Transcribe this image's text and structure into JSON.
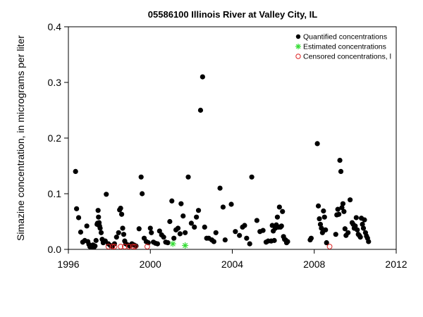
{
  "chart_data": {
    "type": "scatter",
    "title": "05586100 Illinois River at Valley City, IL",
    "xlabel": "",
    "ylabel": "Simazine concentration, in micrograms per liter",
    "xlim": [
      1996,
      2012
    ],
    "ylim": [
      0,
      0.4
    ],
    "x_ticks": [
      "1996",
      "2000",
      "2004",
      "2008",
      "2012"
    ],
    "y_ticks": [
      "0.0",
      "0.1",
      "0.2",
      "0.3",
      "0.4"
    ],
    "grid": false,
    "legend_position": "top-right",
    "colors": {
      "quantified": "#000000",
      "estimated": "#33dd33",
      "censored": "#dd2222"
    },
    "series": [
      {
        "name": "Quantified concentrations",
        "marker": "filled-circle",
        "points": [
          [
            1996.35,
            0.14
          ],
          [
            1996.4,
            0.073
          ],
          [
            1996.5,
            0.057
          ],
          [
            1996.6,
            0.031
          ],
          [
            1996.7,
            0.013
          ],
          [
            1996.8,
            0.016
          ],
          [
            1996.9,
            0.042
          ],
          [
            1996.95,
            0.014
          ],
          [
            1997.0,
            0.009
          ],
          [
            1997.05,
            0.005
          ],
          [
            1997.1,
            0.006
          ],
          [
            1997.15,
            0.005
          ],
          [
            1997.2,
            0.008
          ],
          [
            1997.25,
            0.004
          ],
          [
            1997.3,
            0.006
          ],
          [
            1997.35,
            0.016
          ],
          [
            1997.4,
            0.045
          ],
          [
            1997.42,
            0.047
          ],
          [
            1997.45,
            0.07
          ],
          [
            1997.47,
            0.058
          ],
          [
            1997.5,
            0.048
          ],
          [
            1997.52,
            0.042
          ],
          [
            1997.55,
            0.038
          ],
          [
            1997.6,
            0.03
          ],
          [
            1997.65,
            0.018
          ],
          [
            1997.7,
            0.012
          ],
          [
            1997.8,
            0.015
          ],
          [
            1997.85,
            0.099
          ],
          [
            1997.95,
            0.01
          ],
          [
            1998.05,
            0.007
          ],
          [
            1998.15,
            0.006
          ],
          [
            1998.25,
            0.01
          ],
          [
            1998.35,
            0.022
          ],
          [
            1998.45,
            0.03
          ],
          [
            1998.5,
            0.071
          ],
          [
            1998.55,
            0.074
          ],
          [
            1998.6,
            0.063
          ],
          [
            1998.65,
            0.038
          ],
          [
            1998.7,
            0.027
          ],
          [
            1998.75,
            0.015
          ],
          [
            1998.8,
            0.01
          ],
          [
            1998.9,
            0.008
          ],
          [
            1999.0,
            0.006
          ],
          [
            1999.1,
            0.01
          ],
          [
            1999.2,
            0.008
          ],
          [
            1999.3,
            0.006
          ],
          [
            1999.45,
            0.037
          ],
          [
            1999.55,
            0.13
          ],
          [
            1999.6,
            0.1
          ],
          [
            1999.7,
            0.02
          ],
          [
            1999.8,
            0.014
          ],
          [
            1999.9,
            0.012
          ],
          [
            2000.0,
            0.038
          ],
          [
            2000.05,
            0.03
          ],
          [
            2000.15,
            0.013
          ],
          [
            2000.25,
            0.011
          ],
          [
            2000.35,
            0.01
          ],
          [
            2000.45,
            0.033
          ],
          [
            2000.55,
            0.026
          ],
          [
            2000.65,
            0.022
          ],
          [
            2000.75,
            0.013
          ],
          [
            2000.85,
            0.012
          ],
          [
            2000.95,
            0.05
          ],
          [
            2001.05,
            0.087
          ],
          [
            2001.15,
            0.02
          ],
          [
            2001.25,
            0.035
          ],
          [
            2001.35,
            0.038
          ],
          [
            2001.45,
            0.028
          ],
          [
            2001.5,
            0.082
          ],
          [
            2001.6,
            0.06
          ],
          [
            2001.7,
            0.03
          ],
          [
            2001.85,
            0.13
          ],
          [
            2002.0,
            0.047
          ],
          [
            2002.15,
            0.04
          ],
          [
            2002.25,
            0.058
          ],
          [
            2002.35,
            0.07
          ],
          [
            2002.45,
            0.25
          ],
          [
            2002.55,
            0.31
          ],
          [
            2002.65,
            0.04
          ],
          [
            2002.75,
            0.02
          ],
          [
            2002.85,
            0.02
          ],
          [
            2003.0,
            0.017
          ],
          [
            2003.1,
            0.014
          ],
          [
            2003.2,
            0.03
          ],
          [
            2003.4,
            0.11
          ],
          [
            2003.55,
            0.076
          ],
          [
            2003.65,
            0.017
          ],
          [
            2003.95,
            0.081
          ],
          [
            2004.15,
            0.032
          ],
          [
            2004.35,
            0.025
          ],
          [
            2004.5,
            0.04
          ],
          [
            2004.6,
            0.043
          ],
          [
            2004.7,
            0.02
          ],
          [
            2004.85,
            0.01
          ],
          [
            2004.95,
            0.13
          ],
          [
            2005.2,
            0.052
          ],
          [
            2005.35,
            0.032
          ],
          [
            2005.5,
            0.034
          ],
          [
            2005.65,
            0.013
          ],
          [
            2005.75,
            0.015
          ],
          [
            2005.9,
            0.015
          ],
          [
            2005.95,
            0.043
          ],
          [
            2006.0,
            0.033
          ],
          [
            2006.05,
            0.016
          ],
          [
            2006.1,
            0.038
          ],
          [
            2006.15,
            0.044
          ],
          [
            2006.2,
            0.058
          ],
          [
            2006.25,
            0.04
          ],
          [
            2006.3,
            0.076
          ],
          [
            2006.35,
            0.04
          ],
          [
            2006.4,
            0.042
          ],
          [
            2006.45,
            0.068
          ],
          [
            2006.5,
            0.023
          ],
          [
            2006.55,
            0.018
          ],
          [
            2006.6,
            0.017
          ],
          [
            2006.65,
            0.012
          ],
          [
            2006.7,
            0.014
          ],
          [
            2007.8,
            0.017
          ],
          [
            2007.85,
            0.02
          ],
          [
            2008.15,
            0.19
          ],
          [
            2008.2,
            0.078
          ],
          [
            2008.25,
            0.055
          ],
          [
            2008.3,
            0.045
          ],
          [
            2008.35,
            0.038
          ],
          [
            2008.4,
            0.03
          ],
          [
            2008.45,
            0.069
          ],
          [
            2008.5,
            0.058
          ],
          [
            2008.55,
            0.035
          ],
          [
            2008.6,
            0.012
          ],
          [
            2009.05,
            0.027
          ],
          [
            2009.1,
            0.062
          ],
          [
            2009.15,
            0.072
          ],
          [
            2009.2,
            0.063
          ],
          [
            2009.25,
            0.16
          ],
          [
            2009.3,
            0.14
          ],
          [
            2009.35,
            0.075
          ],
          [
            2009.4,
            0.082
          ],
          [
            2009.45,
            0.068
          ],
          [
            2009.5,
            0.037
          ],
          [
            2009.55,
            0.025
          ],
          [
            2009.65,
            0.03
          ],
          [
            2009.75,
            0.089
          ],
          [
            2009.85,
            0.048
          ],
          [
            2009.9,
            0.045
          ],
          [
            2009.95,
            0.038
          ],
          [
            2010.0,
            0.042
          ],
          [
            2010.05,
            0.057
          ],
          [
            2010.1,
            0.035
          ],
          [
            2010.15,
            0.027
          ],
          [
            2010.2,
            0.025
          ],
          [
            2010.25,
            0.022
          ],
          [
            2010.3,
            0.056
          ],
          [
            2010.35,
            0.045
          ],
          [
            2010.4,
            0.038
          ],
          [
            2010.45,
            0.053
          ],
          [
            2010.5,
            0.03
          ],
          [
            2010.55,
            0.024
          ],
          [
            2010.6,
            0.02
          ],
          [
            2010.65,
            0.014
          ]
        ]
      },
      {
        "name": "Estimated concentrations",
        "marker": "asterisk",
        "points": [
          [
            2001.1,
            0.01
          ],
          [
            2001.7,
            0.007
          ]
        ]
      },
      {
        "name": "Censored concentrations, l",
        "marker": "open-circle",
        "points": [
          [
            1997.95,
            0.005
          ],
          [
            1998.15,
            0.005
          ],
          [
            1998.25,
            0.005
          ],
          [
            1998.55,
            0.005
          ],
          [
            1998.75,
            0.005
          ],
          [
            1998.95,
            0.005
          ],
          [
            1999.15,
            0.005
          ],
          [
            1999.25,
            0.005
          ],
          [
            1999.85,
            0.005
          ],
          [
            2008.75,
            0.005
          ]
        ]
      }
    ]
  }
}
